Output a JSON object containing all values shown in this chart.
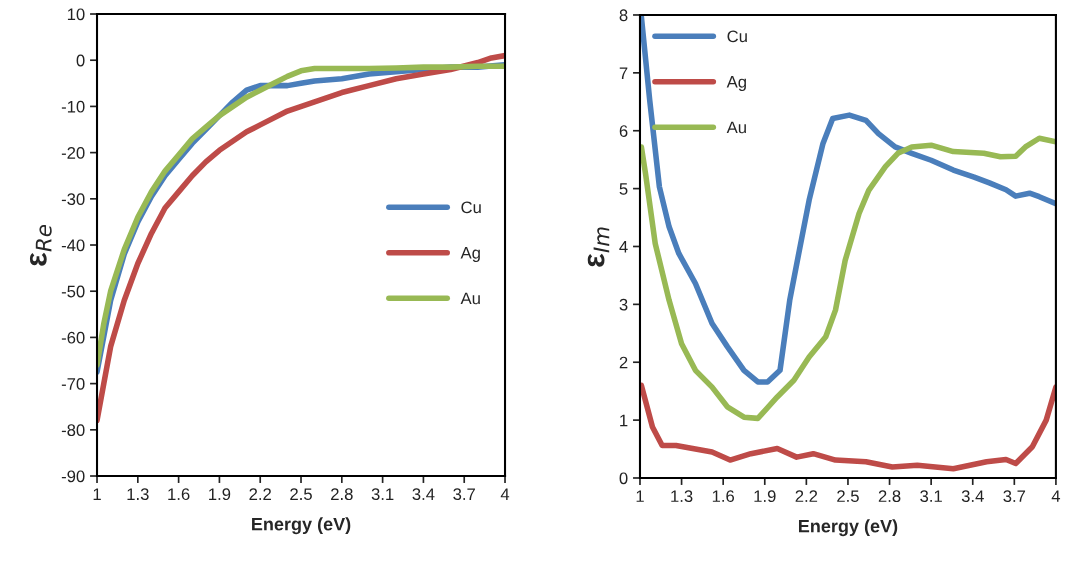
{
  "chart_data": [
    {
      "type": "line",
      "xlabel": "Energy (eV)",
      "ylabel": "ε$_{Re}$",
      "xlim": [
        1,
        4
      ],
      "xticks": [
        1,
        1.3,
        1.6,
        1.9,
        2.2,
        2.5,
        2.8,
        3.1,
        3.4,
        3.7,
        4
      ],
      "ylim": [
        -90,
        10
      ],
      "yticks": [
        -90,
        -80,
        -70,
        -60,
        -50,
        -40,
        -30,
        -20,
        -10,
        0,
        10
      ],
      "grid": false,
      "legend": "right",
      "marker": "none",
      "line_style": "solid",
      "series": [
        {
          "name": "Cu",
          "color": "#4a7ebb",
          "x": [
            1,
            1.1,
            1.2,
            1.3,
            1.4,
            1.5,
            1.6,
            1.7,
            1.8,
            1.9,
            2.0,
            2.1,
            2.2,
            2.3,
            2.4,
            2.5,
            2.6,
            2.8,
            3.0,
            3.2,
            3.4,
            3.6,
            3.8,
            4.0
          ],
          "values": [
            -67.5,
            -52,
            -42,
            -35,
            -29.5,
            -25,
            -21.5,
            -18,
            -15,
            -12,
            -9,
            -6.5,
            -5.5,
            -5.5,
            -5.5,
            -5,
            -4.5,
            -4,
            -3,
            -2.5,
            -2,
            -1.5,
            -1.5,
            -1
          ]
        },
        {
          "name": "Ag",
          "color": "#be4b48",
          "x": [
            1,
            1.05,
            1.1,
            1.2,
            1.3,
            1.4,
            1.5,
            1.6,
            1.7,
            1.8,
            1.9,
            2.0,
            2.1,
            2.2,
            2.4,
            2.6,
            2.8,
            3.0,
            3.2,
            3.4,
            3.6,
            3.8,
            3.9,
            4.0
          ],
          "values": [
            -78,
            -70,
            -62,
            -52,
            -44,
            -37.5,
            -32,
            -28.5,
            -25,
            -22,
            -19.5,
            -17.5,
            -15.5,
            -14,
            -11,
            -9,
            -7,
            -5.5,
            -4,
            -3,
            -2,
            -0.5,
            0.5,
            1
          ]
        },
        {
          "name": "Au",
          "color": "#98b954",
          "x": [
            1,
            1.05,
            1.1,
            1.2,
            1.3,
            1.4,
            1.5,
            1.6,
            1.7,
            1.8,
            1.9,
            2.0,
            2.1,
            2.2,
            2.3,
            2.4,
            2.5,
            2.6,
            2.8,
            3.0,
            3.2,
            3.4,
            3.6,
            3.8,
            4.0
          ],
          "values": [
            -66,
            -57,
            -50,
            -41,
            -34,
            -28.5,
            -24,
            -20.5,
            -17,
            -14.5,
            -12,
            -10,
            -8,
            -6.5,
            -5,
            -3.5,
            -2.3,
            -1.8,
            -1.8,
            -1.8,
            -1.7,
            -1.5,
            -1.5,
            -1.3,
            -1.3
          ]
        }
      ]
    },
    {
      "type": "line",
      "xlabel": "Energy (eV)",
      "ylabel": "ε$_{Im}$",
      "xlim": [
        1,
        4
      ],
      "xticks": [
        1,
        1.3,
        1.6,
        1.9,
        2.2,
        2.5,
        2.8,
        3.1,
        3.4,
        3.7,
        4
      ],
      "ylim": [
        0,
        8
      ],
      "yticks": [
        0,
        1,
        2,
        3,
        4,
        5,
        6,
        7,
        8
      ],
      "grid": false,
      "legend": "upper left",
      "marker": "none",
      "line_style": "solid",
      "series": [
        {
          "name": "Cu",
          "color": "#4a7ebb",
          "x": [
            1.01,
            1.07,
            1.14,
            1.21,
            1.28,
            1.4,
            1.52,
            1.63,
            1.75,
            1.85,
            1.92,
            2.01,
            2.08,
            2.15,
            2.22,
            2.32,
            2.39,
            2.51,
            2.63,
            2.72,
            2.84,
            2.96,
            3.1,
            3.26,
            3.41,
            3.52,
            3.64,
            3.71,
            3.81,
            3.88,
            4.0
          ],
          "values": [
            7.97,
            6.53,
            5.03,
            4.34,
            3.88,
            3.36,
            2.67,
            2.27,
            1.86,
            1.66,
            1.66,
            1.86,
            3.07,
            3.94,
            4.8,
            5.78,
            6.21,
            6.27,
            6.18,
            5.95,
            5.72,
            5.61,
            5.49,
            5.32,
            5.2,
            5.1,
            4.98,
            4.87,
            4.92,
            4.86,
            4.74
          ]
        },
        {
          "name": "Ag",
          "color": "#be4b48",
          "x": [
            1.01,
            1.09,
            1.16,
            1.26,
            1.52,
            1.65,
            1.8,
            1.99,
            2.13,
            2.25,
            2.41,
            2.63,
            2.82,
            3.0,
            3.26,
            3.5,
            3.64,
            3.71,
            3.83,
            3.93,
            4.0
          ],
          "values": [
            1.6,
            0.88,
            0.56,
            0.56,
            0.45,
            0.31,
            0.42,
            0.51,
            0.36,
            0.42,
            0.31,
            0.28,
            0.19,
            0.22,
            0.16,
            0.28,
            0.32,
            0.25,
            0.54,
            1.0,
            1.57
          ]
        },
        {
          "name": "Au",
          "color": "#98b954",
          "x": [
            1.01,
            1.04,
            1.11,
            1.21,
            1.3,
            1.4,
            1.52,
            1.63,
            1.75,
            1.85,
            1.99,
            2.11,
            2.22,
            2.34,
            2.41,
            2.48,
            2.58,
            2.65,
            2.77,
            2.86,
            2.96,
            3.1,
            3.26,
            3.48,
            3.6,
            3.71,
            3.78,
            3.88,
            4.0
          ],
          "values": [
            5.72,
            5.26,
            4.05,
            3.07,
            2.32,
            1.86,
            1.57,
            1.23,
            1.05,
            1.03,
            1.4,
            1.69,
            2.09,
            2.44,
            2.9,
            3.76,
            4.57,
            4.97,
            5.38,
            5.61,
            5.72,
            5.75,
            5.64,
            5.61,
            5.55,
            5.56,
            5.72,
            5.87,
            5.81
          ]
        }
      ]
    }
  ]
}
